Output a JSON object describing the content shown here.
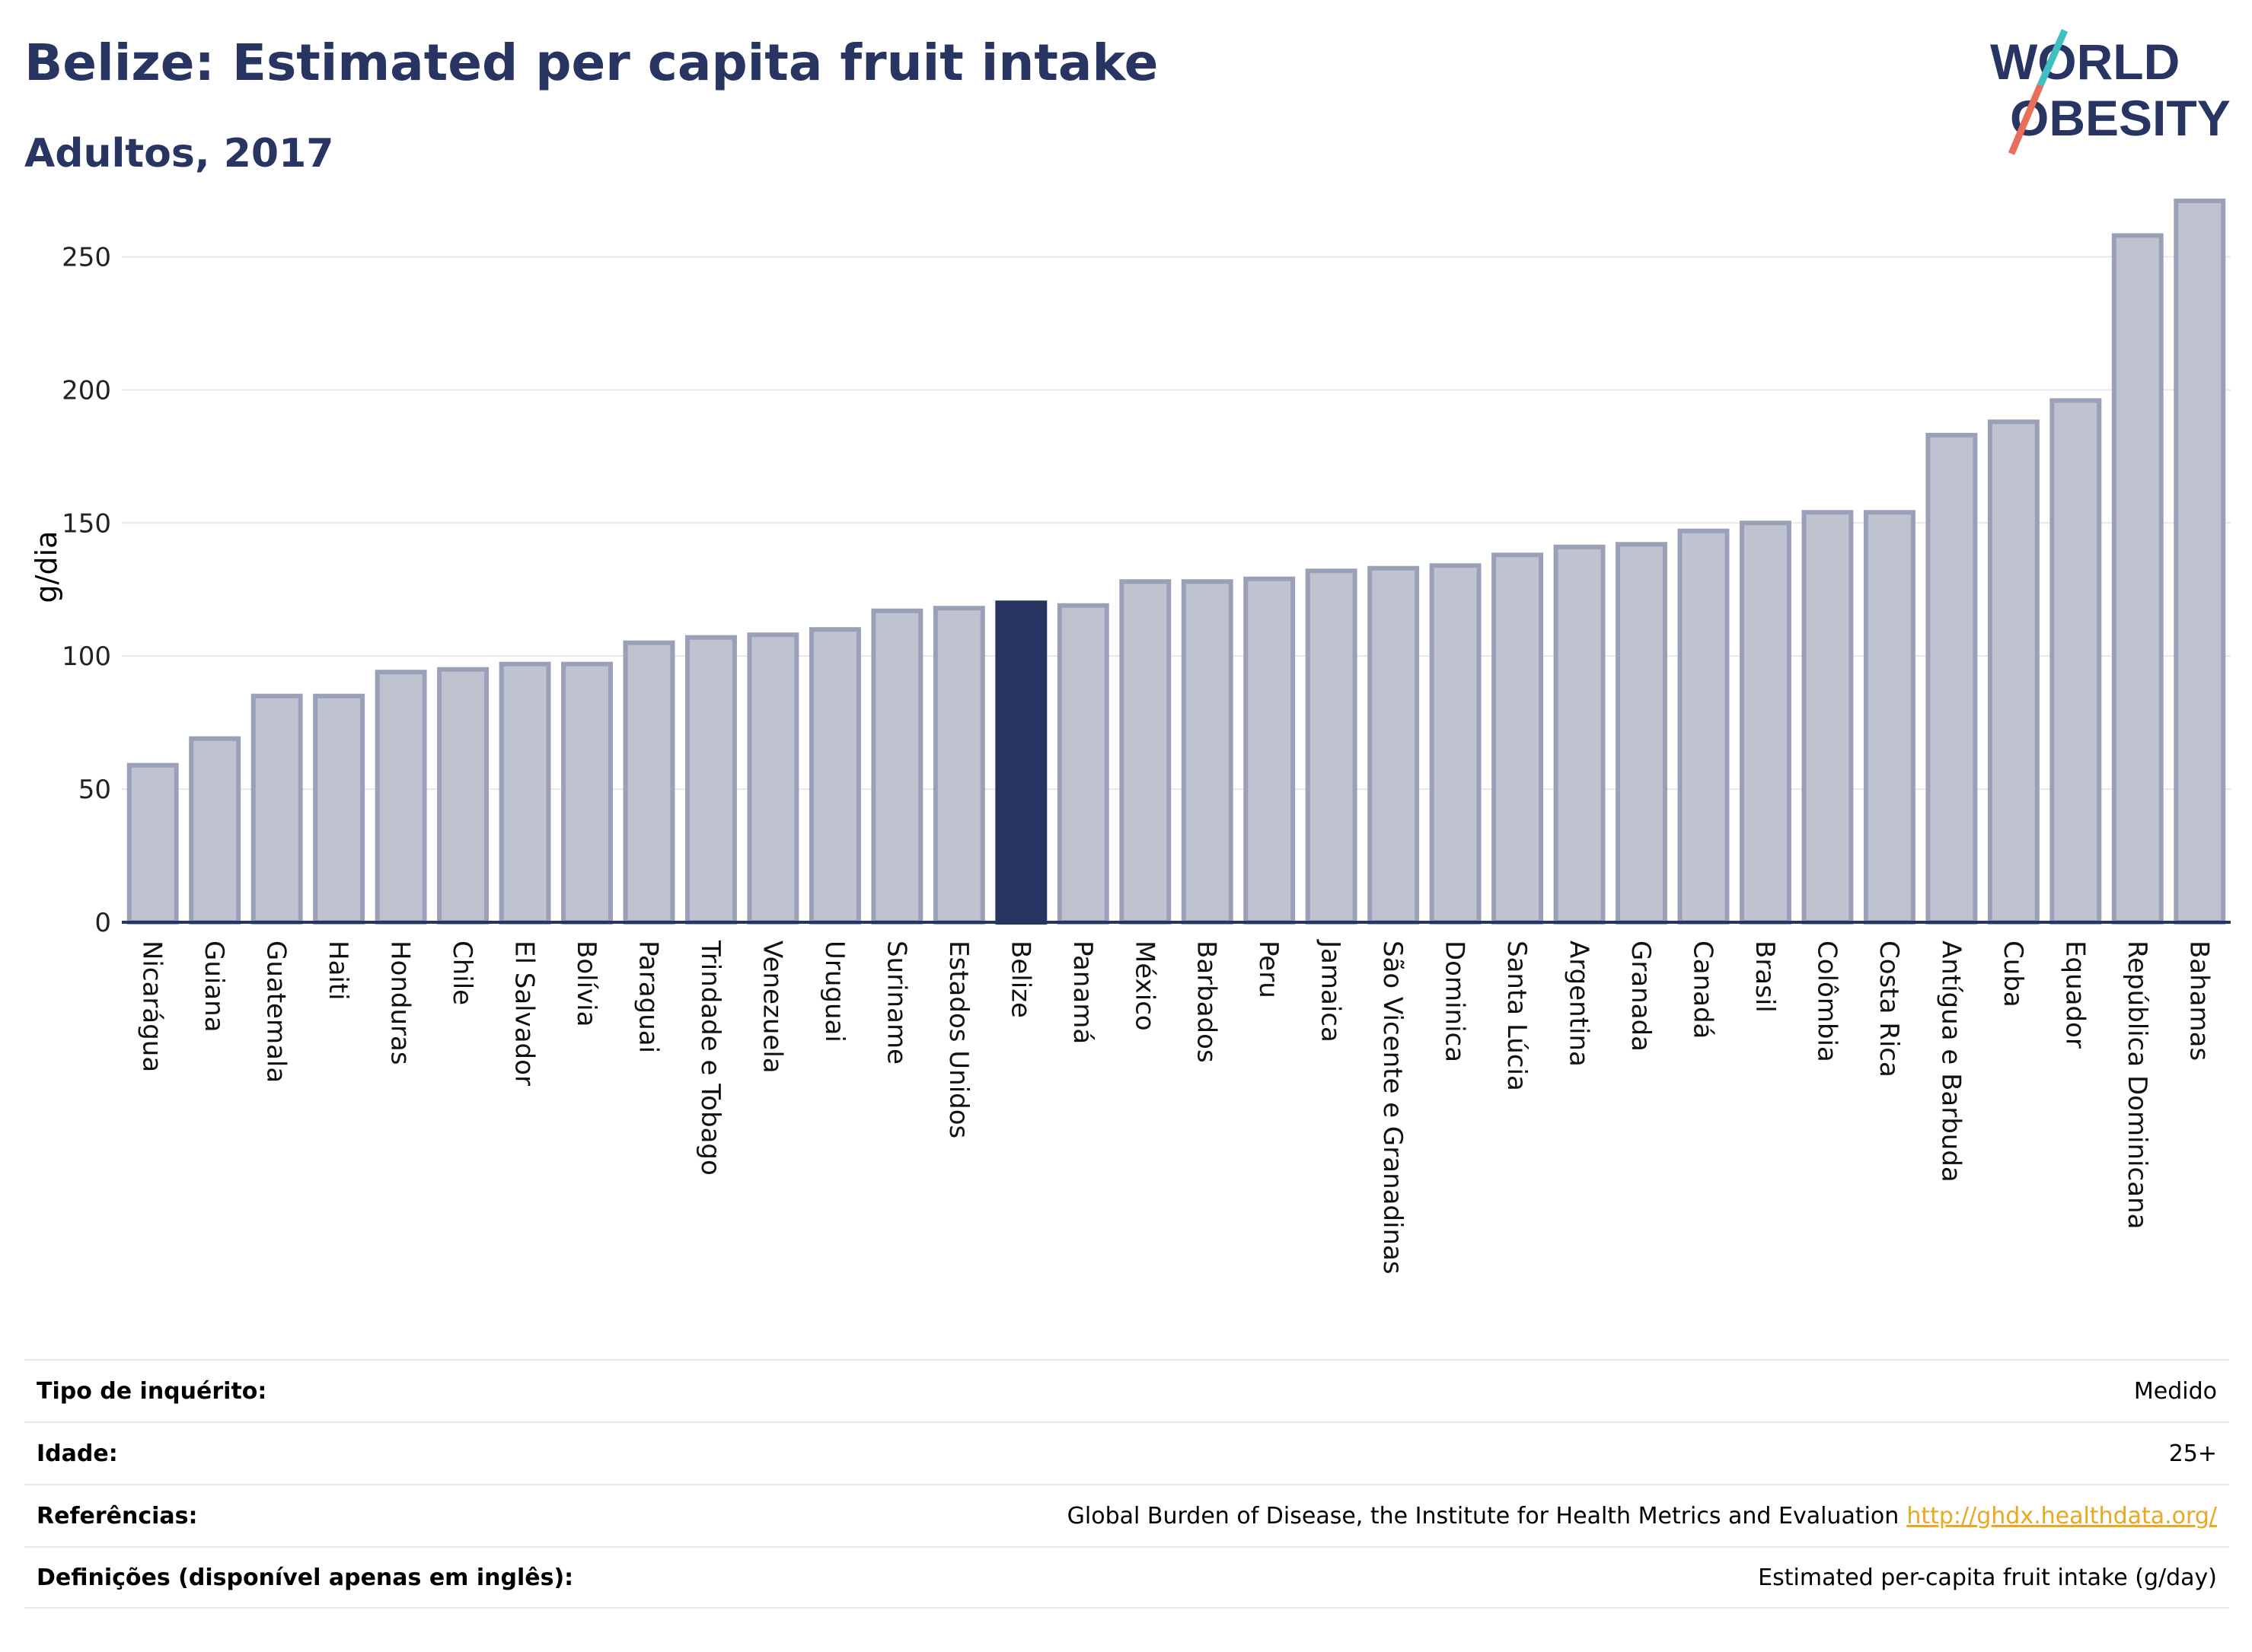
{
  "header": {
    "title": "Belize: Estimated per capita fruit intake",
    "subtitle": "Adultos, 2017"
  },
  "logo": {
    "line1": "WORLD",
    "line2": "OBESITY",
    "icon": "world-obesity-logo"
  },
  "colors": {
    "highlight": "#283462",
    "bar": "#bfc3d0",
    "bar_border": "#9aa0b8",
    "title": "#283462",
    "grid": "#e6e8ee",
    "link": "#e8a821",
    "logo_teal": "#3fbfc0",
    "logo_coral": "#e8705a"
  },
  "chart_data": {
    "type": "bar",
    "ylabel": "g/dia",
    "xlabel": "",
    "ylim": [
      0,
      275
    ],
    "yticks": [
      0,
      50,
      100,
      150,
      200,
      250
    ],
    "grid": true,
    "highlight": "Belize",
    "categories": [
      "Nicarágua",
      "Guiana",
      "Guatemala",
      "Haiti",
      "Honduras",
      "Chile",
      "El Salvador",
      "Bolívia",
      "Paraguai",
      "Trindade e Tobago",
      "Venezuela",
      "Uruguai",
      "Suriname",
      "Estados Unidos",
      "Belize",
      "Panamá",
      "México",
      "Barbados",
      "Peru",
      "Jamaica",
      "São Vicente e Granadinas",
      "Dominica",
      "Santa Lúcia",
      "Argentina",
      "Granada",
      "Canadá",
      "Brasil",
      "Colômbia",
      "Costa Rica",
      "Antígua e Barbuda",
      "Cuba",
      "Equador",
      "República Dominicana",
      "Bahamas"
    ],
    "values": [
      59,
      69,
      85,
      85,
      94,
      95,
      97,
      97,
      105,
      107,
      108,
      110,
      117,
      118,
      120,
      119,
      128,
      128,
      129,
      132,
      133,
      134,
      138,
      141,
      142,
      147,
      150,
      154,
      154,
      183,
      188,
      196,
      258,
      271
    ]
  },
  "info": {
    "rows": [
      {
        "label": "Tipo de inquérito:",
        "value": "Medido",
        "link": ""
      },
      {
        "label": "Idade:",
        "value": "25+",
        "link": ""
      },
      {
        "label": "Referências:",
        "value": "Global Burden of Disease, the Institute for Health Metrics and Evaluation",
        "link": "http://ghdx.healthdata.org/"
      },
      {
        "label": "Definições (disponível apenas em inglês):",
        "value": "Estimated per-capita fruit intake (g/day)",
        "link": ""
      }
    ]
  }
}
